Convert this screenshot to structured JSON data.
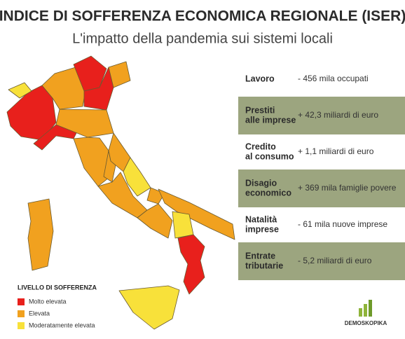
{
  "header": {
    "title": "INDICE DI SOFFERENZA ECONOMICA REGIONALE (ISER)",
    "subtitle": "L'impatto della pandemia sui sistemi locali"
  },
  "rows": [
    {
      "label": [
        "Lavoro"
      ],
      "value": "- 456 mila occupati"
    },
    {
      "label": [
        "Prestiti",
        "alle imprese"
      ],
      "value": "+ 42,3 miliardi di euro"
    },
    {
      "label": [
        "Credito",
        "al consumo"
      ],
      "value": "+ 1,1 miliardi di euro"
    },
    {
      "label": [
        "Disagio",
        "economico"
      ],
      "value": "+ 369 mila famiglie povere"
    },
    {
      "label": [
        "Natalità",
        "imprese"
      ],
      "value": "- 61 mila nuove imprese"
    },
    {
      "label": [
        "Entrate",
        "tributarie"
      ],
      "value": "- 5,2 miliardi di euro"
    }
  ],
  "legend": {
    "title": "LIVELLO DI SOFFERENZA",
    "items": [
      {
        "label": "Molto elevata",
        "color": "#e8201c"
      },
      {
        "label": "Elevata",
        "color": "#f1a11f"
      },
      {
        "label": "Moderatamente elevata",
        "color": "#f8e13a"
      }
    ]
  },
  "logo": {
    "name": "DEMOSKOPIKA"
  }
}
